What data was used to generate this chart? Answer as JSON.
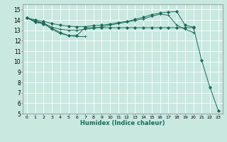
{
  "xlabel": "Humidex (Indice chaleur)",
  "xlim": [
    -0.5,
    23.5
  ],
  "ylim": [
    5,
    15.5
  ],
  "yticks": [
    5,
    6,
    7,
    8,
    9,
    10,
    11,
    12,
    13,
    14,
    15
  ],
  "xticks": [
    0,
    1,
    2,
    3,
    4,
    5,
    6,
    7,
    8,
    9,
    10,
    11,
    12,
    13,
    14,
    15,
    16,
    17,
    18,
    19,
    20,
    21,
    22,
    23
  ],
  "background_color": "#c8e8e0",
  "grid_color": "#ffffff",
  "line_color": "#1a6b5a",
  "series": [
    {
      "x": [
        0,
        1,
        2,
        3,
        4,
        5,
        6,
        7
      ],
      "y": [
        14.2,
        13.8,
        13.7,
        13.1,
        12.7,
        12.5,
        12.4,
        12.4
      ],
      "marker": "+"
    },
    {
      "x": [
        0,
        1,
        2,
        3,
        4,
        5,
        6,
        7,
        8,
        9,
        10,
        11,
        12,
        13,
        14,
        15,
        16,
        17,
        18,
        19,
        20
      ],
      "y": [
        14.2,
        13.8,
        13.6,
        13.2,
        12.8,
        12.5,
        12.5,
        13.25,
        13.25,
        13.25,
        13.25,
        13.25,
        13.25,
        13.25,
        13.25,
        13.25,
        13.25,
        13.25,
        13.25,
        13.25,
        13.25
      ],
      "marker": "D"
    },
    {
      "x": [
        0,
        1,
        2,
        3,
        4,
        5,
        6,
        7,
        8,
        9,
        10,
        11,
        12,
        13,
        14,
        15,
        16,
        17,
        18,
        19,
        20
      ],
      "y": [
        14.2,
        13.9,
        13.7,
        13.3,
        13.1,
        13.0,
        13.0,
        13.1,
        13.2,
        13.35,
        13.5,
        13.65,
        13.8,
        13.95,
        14.1,
        14.35,
        14.55,
        14.45,
        13.5,
        13.1,
        12.8
      ],
      "marker": "+"
    },
    {
      "x": [
        0,
        1,
        2,
        3,
        4,
        5,
        6,
        7,
        8,
        9,
        10,
        11,
        12,
        13,
        14,
        15,
        16,
        17,
        18,
        19,
        20,
        21,
        22,
        23
      ],
      "y": [
        14.2,
        14.0,
        13.85,
        13.65,
        13.5,
        13.4,
        13.35,
        13.35,
        13.45,
        13.5,
        13.6,
        13.75,
        13.85,
        14.05,
        14.25,
        14.5,
        14.65,
        14.75,
        14.8,
        13.5,
        13.3,
        10.1,
        7.5,
        5.3
      ],
      "marker": "D"
    }
  ]
}
